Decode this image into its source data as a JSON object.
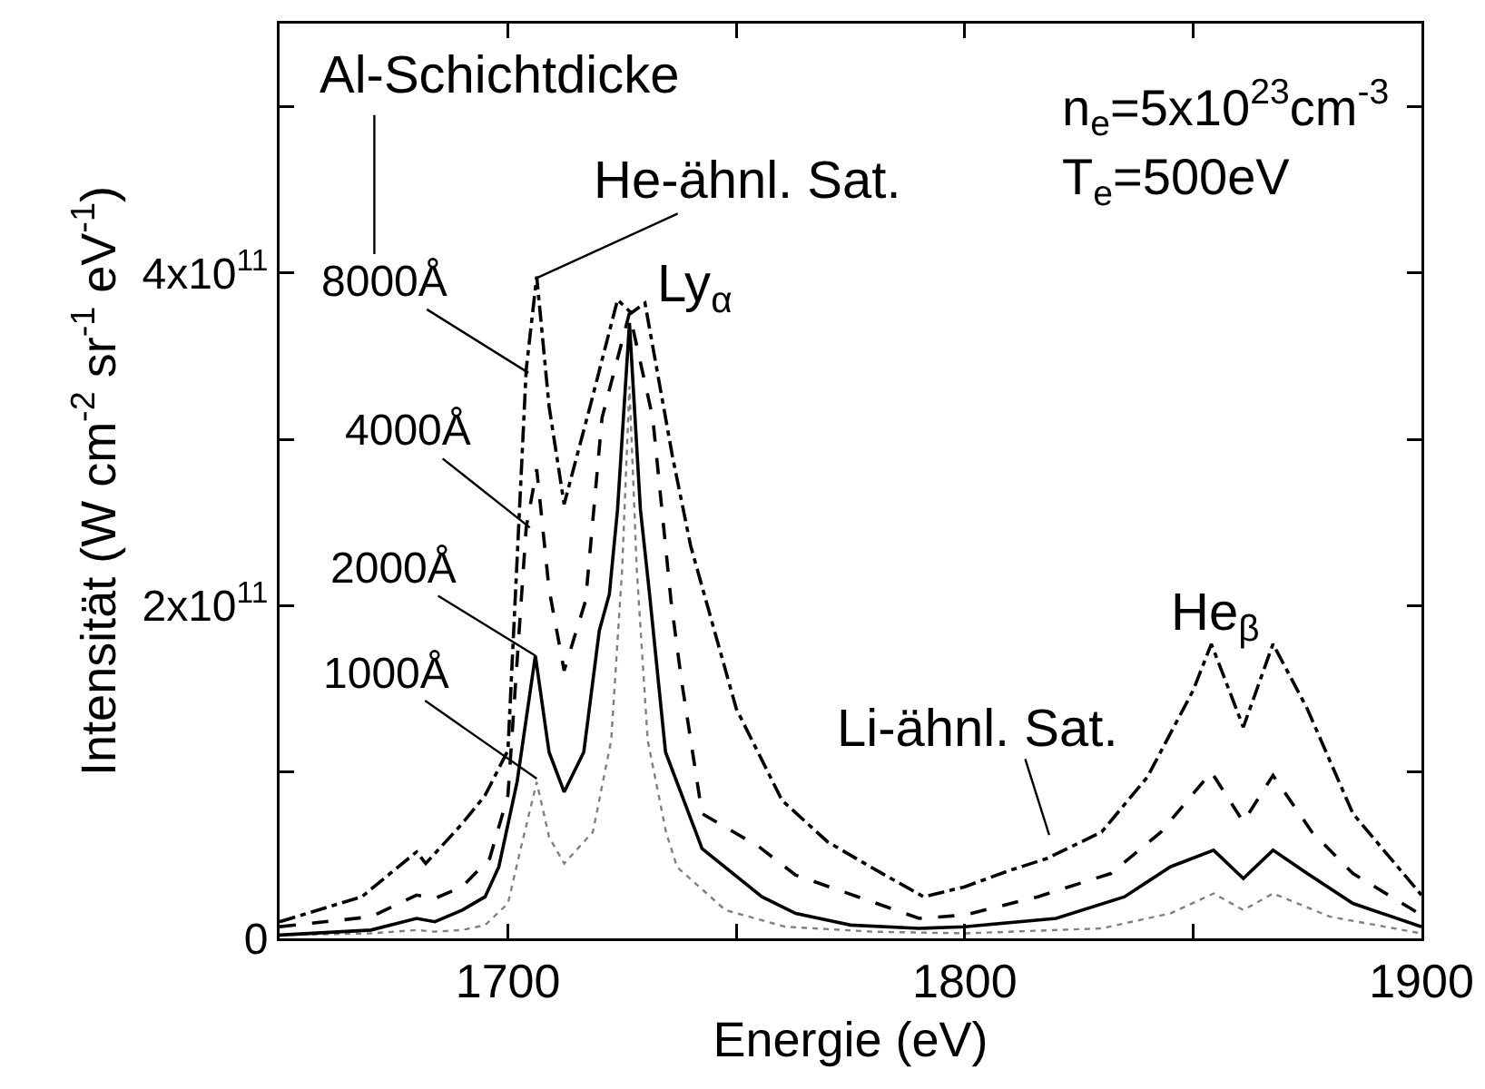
{
  "chart_data": {
    "type": "line",
    "xlabel": "Energie (eV)",
    "ylabel": "Intensität (W cm$^{-2}$ sr$^{-1}$ eV$^{-1}$)",
    "legend_title": "Al-Schichtdicke",
    "xlim": [
      1650,
      1900
    ],
    "ylim": [
      0,
      550000000000
    ],
    "xticks": [
      1700,
      {
        "value": 1750,
        "label": null
      },
      1800,
      {
        "value": 1850,
        "label": null
      },
      1900
    ],
    "yticks": [
      0,
      {
        "value": 100000000000,
        "label": null
      },
      {
        "value": 200000000000,
        "label": "2x10$^{11}$"
      },
      {
        "value": 300000000000,
        "label": null
      },
      {
        "value": 400000000000,
        "label": "4x10$^{11}$"
      },
      {
        "value": 500000000000,
        "label": null
      }
    ],
    "grid": false,
    "marker": "none",
    "series": [
      {
        "color": "#808080",
        "line_style": "dotted",
        "x": [
          1650,
          1670,
          1680,
          1684,
          1690,
          1695,
          1700,
          1702.8,
          1706.3,
          1709,
          1712.3,
          1718.6,
          1722.6,
          1725,
          1726.6,
          1728.2,
          1730.6,
          1734.6,
          1737,
          1747.6,
          1760.7,
          1780,
          1800,
          1830,
          1845,
          1854.5,
          1861,
          1867.5,
          1880,
          1900
        ],
        "values": [
          2000000000,
          3000000000,
          5000000000,
          4000000000,
          5000000000,
          8000000000,
          21000000000,
          54000000000,
          94000000000,
          61000000000,
          45000000000,
          64000000000,
          119000000000,
          222000000000,
          332000000000,
          222000000000,
          119000000000,
          64000000000,
          43000000000,
          17000000000,
          7000000000,
          4000000000,
          3000000000,
          6000000000,
          15000000000,
          27000000000,
          17000000000,
          27000000000,
          13000000000,
          3000000000
        ]
      },
      {
        "color": "#000000",
        "line_style": "solid",
        "x": [
          1650,
          1670,
          1680,
          1684,
          1690,
          1695,
          1698,
          1702,
          1706,
          1709,
          1712.3,
          1716.6,
          1720,
          1722.2,
          1724,
          1726.6,
          1729,
          1731,
          1734.5,
          1742.5,
          1755.6,
          1763,
          1775,
          1790,
          1800,
          1820,
          1835,
          1845,
          1854.5,
          1861,
          1867.5,
          1875,
          1885,
          1900
        ],
        "values": [
          2000000000,
          5000000000,
          12000000000,
          10000000000,
          17000000000,
          25000000000,
          43000000000,
          94000000000,
          170000000000,
          112000000000,
          88000000000,
          112000000000,
          185000000000,
          207000000000,
          258000000000,
          370000000000,
          258000000000,
          207000000000,
          112000000000,
          54000000000,
          25000000000,
          15000000000,
          8000000000,
          6000000000,
          7000000000,
          12000000000,
          25000000000,
          43000000000,
          53000000000,
          36000000000,
          53000000000,
          39000000000,
          21000000000,
          7000000000
        ]
      },
      {
        "color": "#000000",
        "line_style": "dashed",
        "x": [
          1650,
          1670,
          1680,
          1684,
          1690,
          1696,
          1700,
          1704,
          1706.3,
          1709,
          1712.3,
          1717,
          1720.6,
          1726.6,
          1731.7,
          1735.7,
          1738,
          1742.5,
          1755,
          1763,
          1776.6,
          1790,
          1800,
          1816,
          1832,
          1843,
          1854,
          1861,
          1867.5,
          1876,
          1885,
          1900
        ],
        "values": [
          7000000000,
          13000000000,
          26000000000,
          24000000000,
          31000000000,
          48000000000,
          86000000000,
          247000000000,
          282000000000,
          210000000000,
          161000000000,
          203000000000,
          313000000000,
          376000000000,
          313000000000,
          203000000000,
          155000000000,
          75000000000,
          55000000000,
          38000000000,
          25000000000,
          12000000000,
          14000000000,
          25000000000,
          39000000000,
          64000000000,
          100000000000,
          70000000000,
          98000000000,
          64000000000,
          39000000000,
          14000000000
        ]
      },
      {
        "color": "#000000",
        "line_style": "dashdot",
        "x": [
          1650,
          1668,
          1680,
          1682,
          1690,
          1695,
          1700,
          1704,
          1706.3,
          1709,
          1712.3,
          1718,
          1724,
          1727,
          1730,
          1736,
          1740,
          1750,
          1760,
          1770,
          1780,
          1791,
          1800,
          1810,
          1818,
          1830,
          1840,
          1850,
          1854,
          1861,
          1867.5,
          1875,
          1885,
          1900
        ],
        "values": [
          10000000000,
          25000000000,
          52000000000,
          45000000000,
          69000000000,
          86000000000,
          113000000000,
          342000000000,
          398000000000,
          320000000000,
          261000000000,
          320000000000,
          384000000000,
          376000000000,
          382000000000,
          290000000000,
          236000000000,
          138000000000,
          83000000000,
          58000000000,
          42000000000,
          25000000000,
          31000000000,
          41000000000,
          48000000000,
          64000000000,
          97000000000,
          149000000000,
          177000000000,
          127000000000,
          177000000000,
          138000000000,
          75000000000,
          26000000000
        ]
      }
    ],
    "annotations": [
      {
        "text": "He-ähnl. Sat.",
        "x": 1706.3,
        "y": 397000000000
      },
      {
        "text": "Ly$_{α}$",
        "x": 1727,
        "y": 380000000000
      },
      {
        "text": "8000Å",
        "x": 1704.5,
        "y": 340000000000
      },
      {
        "text": "4000Å",
        "x": 1704.8,
        "y": 247000000000
      },
      {
        "text": "2000Å",
        "x": 1706,
        "y": 170000000000
      },
      {
        "text": "1000Å",
        "x": 1706.3,
        "y": 96000000000
      },
      "He$_{β}$",
      "Li-ähnl. Sat.",
      "n$_{e}$=5x10$^{23}$cm$^{-3}$",
      "T$_{e}$=500eV"
    ]
  }
}
